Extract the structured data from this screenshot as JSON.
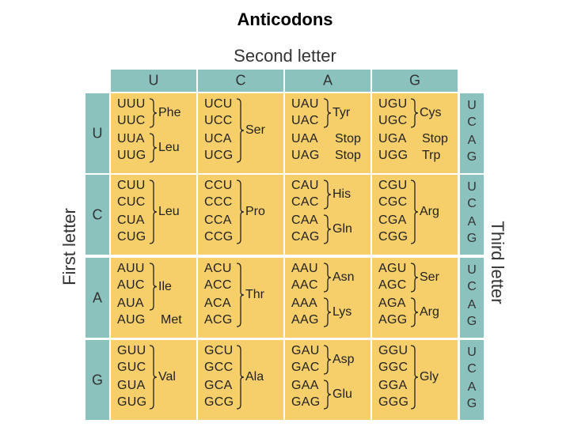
{
  "title": "Anticodons",
  "second_letter_label": "Second letter",
  "first_letter_label": "First letter",
  "third_letter_label": "Third letter",
  "second_letters": [
    "U",
    "C",
    "A",
    "G"
  ],
  "first_letters": [
    "U",
    "C",
    "A",
    "G"
  ],
  "third_letters": [
    "U",
    "C",
    "A",
    "G"
  ],
  "colors": {
    "header": "#8cc2be",
    "cell": "#f6cf6a"
  },
  "cells": [
    [
      {
        "codons": [
          "UUU",
          "UUC",
          "UUA",
          "UUG"
        ],
        "groups": [
          {
            "aa": "Phe",
            "rows": [
              0,
              1
            ]
          },
          {
            "aa": "Leu",
            "rows": [
              2,
              3
            ]
          }
        ]
      },
      {
        "codons": [
          "UCU",
          "UCC",
          "UCA",
          "UCG"
        ],
        "groups": [
          {
            "aa": "Ser",
            "rows": [
              0,
              3
            ]
          }
        ]
      },
      {
        "codons": [
          "UAU",
          "UAC",
          "UAA",
          "UAG"
        ],
        "groups": [
          {
            "aa": "Tyr",
            "rows": [
              0,
              1
            ]
          },
          {
            "aa": "Stop",
            "rows": [
              2,
              2
            ]
          },
          {
            "aa": "Stop",
            "rows": [
              3,
              3
            ]
          }
        ]
      },
      {
        "codons": [
          "UGU",
          "UGC",
          "UGA",
          "UGG"
        ],
        "groups": [
          {
            "aa": "Cys",
            "rows": [
              0,
              1
            ]
          },
          {
            "aa": "Stop",
            "rows": [
              2,
              2
            ]
          },
          {
            "aa": "Trp",
            "rows": [
              3,
              3
            ]
          }
        ]
      }
    ],
    [
      {
        "codons": [
          "CUU",
          "CUC",
          "CUA",
          "CUG"
        ],
        "groups": [
          {
            "aa": "Leu",
            "rows": [
              0,
              3
            ]
          }
        ]
      },
      {
        "codons": [
          "CCU",
          "CCC",
          "CCA",
          "CCG"
        ],
        "groups": [
          {
            "aa": "Pro",
            "rows": [
              0,
              3
            ]
          }
        ]
      },
      {
        "codons": [
          "CAU",
          "CAC",
          "CAA",
          "CAG"
        ],
        "groups": [
          {
            "aa": "His",
            "rows": [
              0,
              1
            ]
          },
          {
            "aa": "Gln",
            "rows": [
              2,
              3
            ]
          }
        ]
      },
      {
        "codons": [
          "CGU",
          "CGC",
          "CGA",
          "CGG"
        ],
        "groups": [
          {
            "aa": "Arg",
            "rows": [
              0,
              3
            ]
          }
        ]
      }
    ],
    [
      {
        "codons": [
          "AUU",
          "AUC",
          "AUA",
          "AUG"
        ],
        "groups": [
          {
            "aa": "Ile",
            "rows": [
              0,
              2
            ]
          },
          {
            "aa": "Met",
            "rows": [
              3,
              3
            ]
          }
        ]
      },
      {
        "codons": [
          "ACU",
          "ACC",
          "ACA",
          "ACG"
        ],
        "groups": [
          {
            "aa": "Thr",
            "rows": [
              0,
              3
            ]
          }
        ]
      },
      {
        "codons": [
          "AAU",
          "AAC",
          "AAA",
          "AAG"
        ],
        "groups": [
          {
            "aa": "Asn",
            "rows": [
              0,
              1
            ]
          },
          {
            "aa": "Lys",
            "rows": [
              2,
              3
            ]
          }
        ]
      },
      {
        "codons": [
          "AGU",
          "AGC",
          "AGA",
          "AGG"
        ],
        "groups": [
          {
            "aa": "Ser",
            "rows": [
              0,
              1
            ]
          },
          {
            "aa": "Arg",
            "rows": [
              2,
              3
            ]
          }
        ]
      }
    ],
    [
      {
        "codons": [
          "GUU",
          "GUC",
          "GUA",
          "GUG"
        ],
        "groups": [
          {
            "aa": "Val",
            "rows": [
              0,
              3
            ]
          }
        ]
      },
      {
        "codons": [
          "GCU",
          "GCC",
          "GCA",
          "GCG"
        ],
        "groups": [
          {
            "aa": "Ala",
            "rows": [
              0,
              3
            ]
          }
        ]
      },
      {
        "codons": [
          "GAU",
          "GAC",
          "GAA",
          "GAG"
        ],
        "groups": [
          {
            "aa": "Asp",
            "rows": [
              0,
              1
            ]
          },
          {
            "aa": "Glu",
            "rows": [
              2,
              3
            ]
          }
        ]
      },
      {
        "codons": [
          "GGU",
          "GGC",
          "GGA",
          "GGG"
        ],
        "groups": [
          {
            "aa": "Gly",
            "rows": [
              0,
              3
            ]
          }
        ]
      }
    ]
  ]
}
